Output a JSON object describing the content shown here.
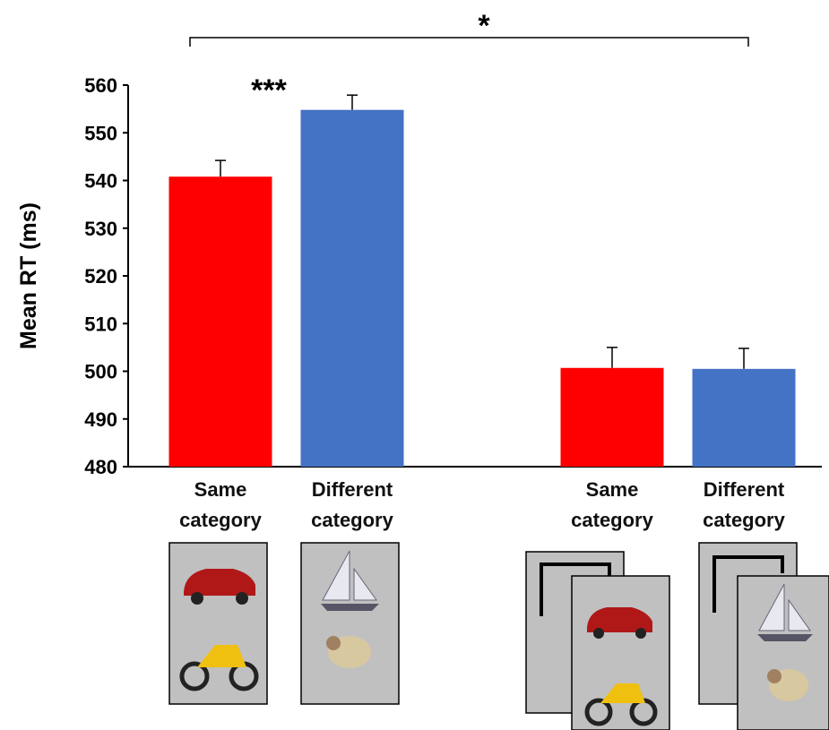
{
  "chart_data": {
    "type": "bar",
    "ylabel": "Mean RT (ms)",
    "categories": [
      "Same category",
      "Different category",
      "Same category",
      "Different category"
    ],
    "values": [
      540.8,
      554.8,
      500.7,
      500.5
    ],
    "errors": [
      3.4,
      3.1,
      4.3,
      4.3
    ],
    "colors": [
      "#ff0000",
      "#4472c4",
      "#ff0000",
      "#4472c4"
    ],
    "ylim": [
      480,
      560
    ],
    "yticks": [
      480,
      490,
      500,
      510,
      520,
      530,
      540,
      550,
      560
    ],
    "annotations": [
      "***",
      "*"
    ]
  }
}
